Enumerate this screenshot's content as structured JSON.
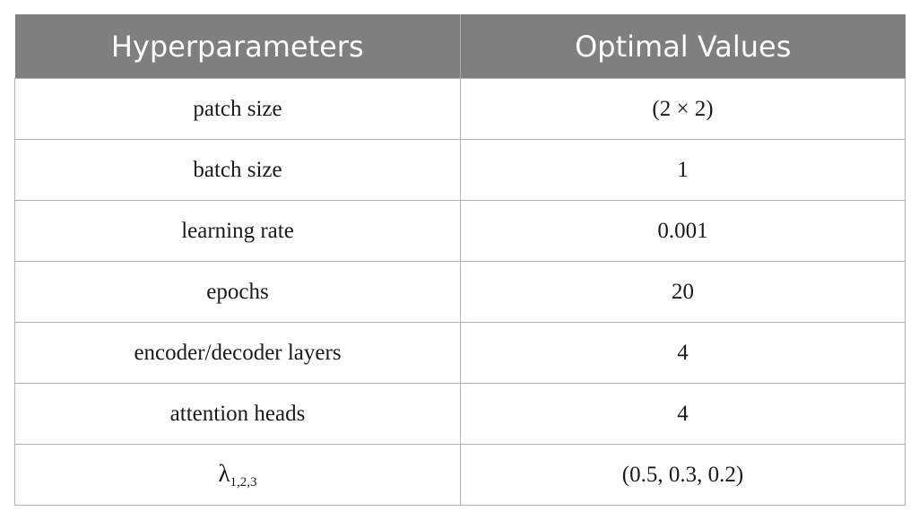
{
  "table": {
    "headers": [
      "Hyperparameters",
      "Optimal Values"
    ],
    "rows": [
      {
        "param": "patch size",
        "value": "(2 × 2)"
      },
      {
        "param": "batch size",
        "value": "1"
      },
      {
        "param": "learning rate",
        "value": "0.001"
      },
      {
        "param": "epochs",
        "value": "20"
      },
      {
        "param": "encoder/decoder layers",
        "value": "4"
      },
      {
        "param": "attention heads",
        "value": "4"
      },
      {
        "param_symbol": "λ",
        "param_subscript": "1,2,3",
        "value": "(0.5, 0.3, 0.2)"
      }
    ]
  },
  "colors": {
    "header_bg": "#7f7f7f",
    "header_text": "#ffffff",
    "grid": "#b3b3b3"
  }
}
